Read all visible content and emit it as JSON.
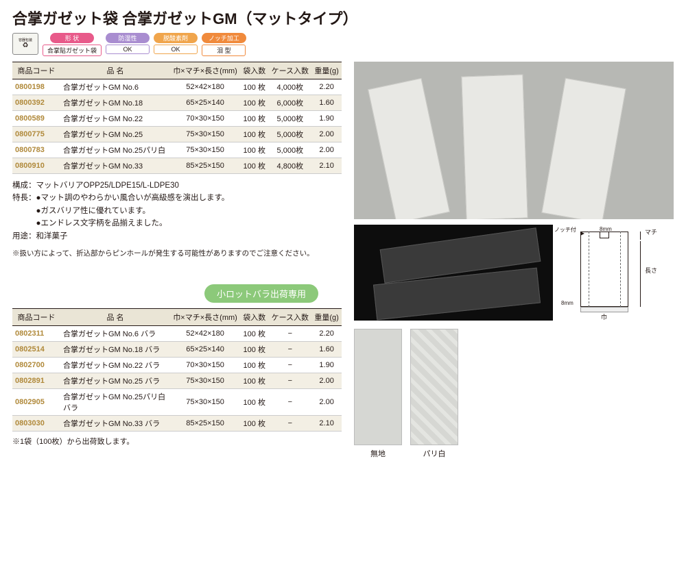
{
  "title": "合掌ガゼット袋 合掌ガゼットGM（マットタイプ）",
  "badges": [
    {
      "top": "形 状",
      "bot": "合掌貼ガゼット袋",
      "topColor": "#e85a8a",
      "botBorder": "#e85a8a"
    },
    {
      "top": "防湿性",
      "bot": "OK",
      "topColor": "#a98dd0",
      "botBorder": "#a98dd0"
    },
    {
      "top": "脱酸素剤",
      "bot": "OK",
      "topColor": "#f0a54c",
      "botBorder": "#f0a54c"
    },
    {
      "top": "ノッチ加工",
      "bot": "泪 型",
      "topColor": "#f08a3c",
      "botBorder": "#f08a3c"
    }
  ],
  "table1_headers": [
    "商品コード",
    "品 名",
    "巾×マチ×長さ(mm)",
    "袋入数",
    "ケース入数",
    "重量(g)"
  ],
  "table1_rows": [
    [
      "0800198",
      "合掌ガゼットGM No.6",
      "52×42×180",
      "100 枚",
      "4,000枚",
      "2.20"
    ],
    [
      "0800392",
      "合掌ガゼットGM No.18",
      "65×25×140",
      "100 枚",
      "6,000枚",
      "1.60"
    ],
    [
      "0800589",
      "合掌ガゼットGM No.22",
      "70×30×150",
      "100 枚",
      "5,000枚",
      "1.90"
    ],
    [
      "0800775",
      "合掌ガゼットGM No.25",
      "75×30×150",
      "100 枚",
      "5,000枚",
      "2.00"
    ],
    [
      "0800783",
      "合掌ガゼットGM No.25パリ白",
      "75×30×150",
      "100 枚",
      "5,000枚",
      "2.00"
    ],
    [
      "0800910",
      "合掌ガゼットGM No.33",
      "85×25×150",
      "100 枚",
      "4,800枚",
      "2.10"
    ]
  ],
  "desc_composition": "構成：マットバリアOPP25/LDPE15/L-LDPE30",
  "desc_features_label": "特長：",
  "desc_features": [
    "●マット調のやわらかい風合いが高級感を演出します。",
    "●ガスバリア性に優れています。",
    "●エンドレス文字柄を品揃えました。"
  ],
  "desc_usage": "用途：和洋菓子",
  "note_text": "※扱い方によって、折込部からピンホールが発生する可能性がありますのでご注意ください。",
  "lot_tag": "小ロットバラ出荷専用",
  "table2_headers": [
    "商品コード",
    "品 名",
    "巾×マチ×長さ(mm)",
    "袋入数",
    "ケース入数",
    "重量(g)"
  ],
  "table2_rows": [
    [
      "0802311",
      "合掌ガゼットGM No.6 バラ",
      "52×42×180",
      "100 枚",
      "−",
      "2.20"
    ],
    [
      "0802514",
      "合掌ガゼットGM No.18 バラ",
      "65×25×140",
      "100 枚",
      "−",
      "1.60"
    ],
    [
      "0802700",
      "合掌ガゼットGM No.22 バラ",
      "70×30×150",
      "100 枚",
      "−",
      "1.90"
    ],
    [
      "0802891",
      "合掌ガゼットGM No.25 バラ",
      "75×30×150",
      "100 枚",
      "−",
      "2.00"
    ],
    [
      "0802905",
      "合掌ガゼットGM No.25パリ白 バラ",
      "75×30×150",
      "100 枚",
      "−",
      "2.00"
    ],
    [
      "0803030",
      "合掌ガゼットGM No.33 バラ",
      "85×25×150",
      "100 枚",
      "−",
      "2.10"
    ]
  ],
  "footnote": "※1袋（100枚）から出荷致します。",
  "diagram_labels": {
    "notch": "ノッチ付",
    "eight_top": "8mm",
    "machi": "マチ",
    "nagasa": "長さ",
    "eight_bot": "8mm",
    "haba": "巾"
  },
  "swatch_labels": [
    "無地",
    "パリ白"
  ]
}
